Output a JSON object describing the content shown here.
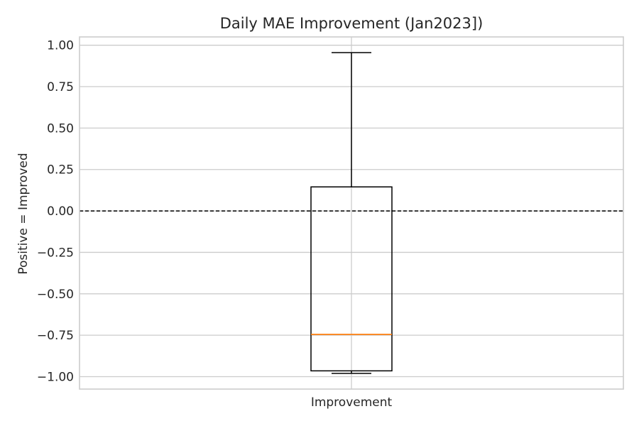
{
  "chart_data": {
    "type": "box",
    "title": "Daily MAE Improvement (Jan2023])",
    "xlabel": "",
    "ylabel": "Positive = Improved",
    "categories": [
      "Improvement"
    ],
    "ylim": [
      -1.075,
      1.05
    ],
    "yticks": [
      1.0,
      0.75,
      0.5,
      0.25,
      0.0,
      -0.25,
      -0.5,
      -0.75,
      -1.0
    ],
    "ytick_labels": [
      "1.00",
      "0.75",
      "0.50",
      "0.25",
      "0.00",
      "−0.25",
      "−0.50",
      "−0.75",
      "−1.00"
    ],
    "grid": true,
    "box": {
      "whisker_low": -0.98,
      "q1": -0.965,
      "median": -0.745,
      "q3": 0.145,
      "whisker_high": 0.955
    },
    "reference_line": {
      "y": 0.0,
      "style": "dashed",
      "color": "#000000"
    },
    "colors": {
      "box": "#000000",
      "median": "#ff7f0e",
      "grid": "#cccccc",
      "frame": "#cccccc"
    }
  }
}
